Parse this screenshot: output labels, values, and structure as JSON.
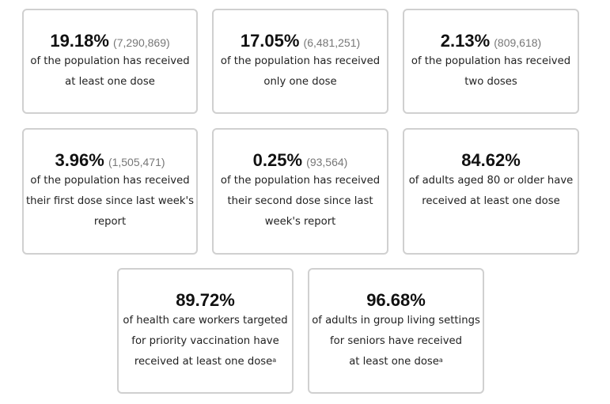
{
  "cards": [
    {
      "percent": "19.18%",
      "count": "(7,290,869)",
      "lines": [
        "of the population has received",
        "at least one dose"
      ]
    },
    {
      "percent": "17.05%",
      "count": "(6,481,251)",
      "lines": [
        "of the population has received",
        "only one dose"
      ]
    },
    {
      "percent": "2.13%",
      "count": "(809,618)",
      "lines": [
        "of the population has received",
        "two doses"
      ]
    },
    {
      "percent": "3.96%",
      "count": "(1,505,471)",
      "lines": [
        "of the population has received",
        "their first dose since last week's",
        "report"
      ]
    },
    {
      "percent": "0.25%",
      "count": "(93,564)",
      "lines": [
        "of the population has received",
        "their second dose since last",
        "week's report"
      ]
    },
    {
      "percent": "84.62%",
      "lines": [
        "of adults aged 80 or older have",
        "received at least one dose"
      ]
    },
    {
      "percent": "89.72%",
      "lines": [
        "of health care workers targeted",
        "for priority vaccination have",
        "received at least one dose"
      ],
      "footnote": "a"
    },
    {
      "percent": "96.68%",
      "lines": [
        "of adults in group living settings",
        "for seniors have received",
        "at least one dose"
      ],
      "footnote": "a"
    }
  ]
}
